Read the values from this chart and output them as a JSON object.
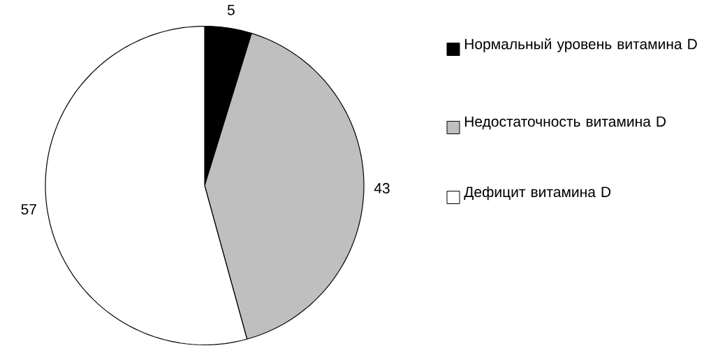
{
  "chart_data": {
    "type": "pie",
    "categories": [
      "Нормальный уровень витамина D",
      "Недостаточность витамина D",
      "Дефицит витамина D"
    ],
    "values": [
      5,
      43,
      57
    ],
    "colors": [
      "#000000",
      "#bfbfbf",
      "#ffffff"
    ],
    "data_labels": true,
    "legend": "right"
  }
}
